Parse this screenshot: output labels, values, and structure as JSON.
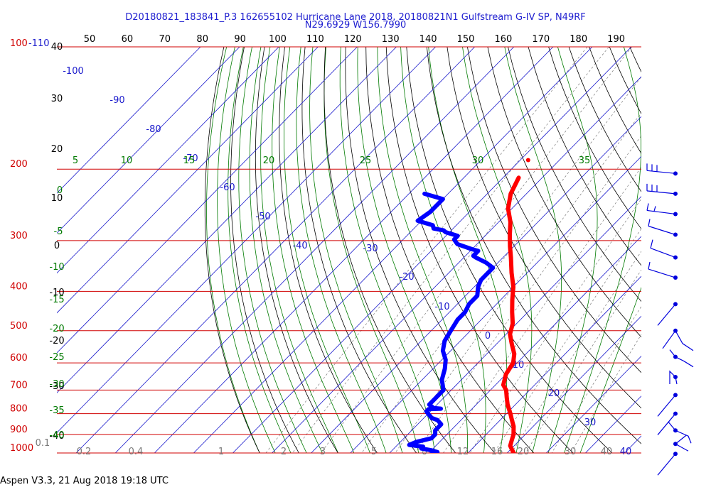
{
  "chart_data": {
    "type": "line",
    "title": "D20180821_183841_P.3 162655102 Hurricane Lane 2018, 20180821N1 Gulfstream G-IV SP, N49RF",
    "subtitle": "N29.6929 W156.7990",
    "footer": "Aspen V3.3, 21 Aug 2018  19:18 UTC",
    "pressure_range": [
      100,
      1000
    ],
    "pressure_corner_label": "100",
    "pressure_ticks": [
      "200",
      "300",
      "400",
      "500",
      "600",
      "700",
      "800",
      "900",
      "1000"
    ],
    "temp_corner_label": "-110",
    "isotherm_ticks": [
      "-100",
      "-90",
      "-80",
      "-70",
      "-60",
      "-50",
      "-40",
      "-30",
      "-20",
      "-10",
      "0",
      "10",
      "20",
      "30",
      "40"
    ],
    "top_axis_ticks": [
      "50",
      "60",
      "70",
      "80",
      "90",
      "100",
      "110",
      "120",
      "130",
      "140",
      "150",
      "160",
      "170",
      "180",
      "190"
    ],
    "left_axis_ticks": [
      "40",
      "30",
      "20",
      "10",
      "0",
      "-10",
      "-20",
      "-30",
      "-40"
    ],
    "mixing_ratio_ticks": [
      "0.1",
      "0.2",
      "0.4",
      "1",
      "2",
      "3",
      "5",
      "8",
      "12",
      "16",
      "20",
      "30",
      "40"
    ],
    "dry_adiabat_ticks": [
      "5",
      "10",
      "15",
      "20",
      "25",
      "30",
      "35"
    ],
    "moist_adiabat_ticks": [
      "0",
      "-5",
      "-10",
      "-15",
      "-20",
      "-25",
      "-30",
      "-35",
      "-40"
    ],
    "series": [
      {
        "role": "temperature",
        "color": "#ff0000",
        "points": [
          [
            210,
            -46
          ],
          [
            230,
            -44
          ],
          [
            250,
            -41
          ],
          [
            270,
            -37
          ],
          [
            290,
            -34
          ],
          [
            310,
            -31
          ],
          [
            330,
            -28
          ],
          [
            360,
            -24
          ],
          [
            390,
            -20
          ],
          [
            420,
            -17
          ],
          [
            450,
            -14
          ],
          [
            480,
            -11
          ],
          [
            510,
            -9
          ],
          [
            540,
            -6
          ],
          [
            570,
            -3
          ],
          [
            600,
            -1
          ],
          [
            640,
            0
          ],
          [
            680,
            2
          ],
          [
            700,
            4
          ],
          [
            730,
            6
          ],
          [
            760,
            8
          ],
          [
            800,
            11
          ],
          [
            830,
            13
          ],
          [
            860,
            15
          ],
          [
            900,
            17
          ],
          [
            930,
            18
          ],
          [
            960,
            19
          ],
          [
            990,
            21
          ],
          [
            1005,
            22
          ]
        ]
      },
      {
        "role": "dewpoint",
        "color": "#0000ff",
        "points": [
          [
            230,
            -66
          ],
          [
            237,
            -60
          ],
          [
            255,
            -60
          ],
          [
            268,
            -61
          ],
          [
            275,
            -56
          ],
          [
            280,
            -55
          ],
          [
            283,
            -52
          ],
          [
            286,
            -51
          ],
          [
            292,
            -47
          ],
          [
            298,
            -47
          ],
          [
            302,
            -46
          ],
          [
            306,
            -45
          ],
          [
            315,
            -40
          ],
          [
            318,
            -38
          ],
          [
            322,
            -38
          ],
          [
            327,
            -38
          ],
          [
            330,
            -37
          ],
          [
            340,
            -33
          ],
          [
            350,
            -30
          ],
          [
            360,
            -30
          ],
          [
            375,
            -30
          ],
          [
            390,
            -29
          ],
          [
            410,
            -27
          ],
          [
            430,
            -27
          ],
          [
            450,
            -26
          ],
          [
            470,
            -26
          ],
          [
            500,
            -25
          ],
          [
            530,
            -24
          ],
          [
            560,
            -22
          ],
          [
            590,
            -19
          ],
          [
            620,
            -17
          ],
          [
            660,
            -15
          ],
          [
            700,
            -12
          ],
          [
            730,
            -12
          ],
          [
            760,
            -12
          ],
          [
            775,
            -10
          ],
          [
            778,
            -8
          ],
          [
            780,
            -11
          ],
          [
            790,
            -11
          ],
          [
            800,
            -10
          ],
          [
            810,
            -9
          ],
          [
            820,
            -8
          ],
          [
            830,
            -6
          ],
          [
            850,
            -4
          ],
          [
            880,
            -4
          ],
          [
            900,
            -3
          ],
          [
            920,
            -3
          ],
          [
            940,
            -6
          ],
          [
            955,
            -7
          ],
          [
            965,
            -3
          ],
          [
            975,
            -3
          ],
          [
            985,
            0
          ],
          [
            995,
            2
          ],
          [
            1003,
            1
          ]
        ]
      },
      {
        "role": "isolated-point",
        "color": "#ff0000",
        "points": [
          [
            190,
            -48
          ]
        ]
      }
    ],
    "wind_barbs": [
      {
        "pressure": 205,
        "style": "EEE"
      },
      {
        "pressure": 230,
        "style": "EEE"
      },
      {
        "pressure": 258,
        "style": "E5"
      },
      {
        "pressure": 290,
        "style": "slash"
      },
      {
        "pressure": 330,
        "style": "L"
      },
      {
        "pressure": 370,
        "style": "slash"
      },
      {
        "pressure": 430,
        "style": "single"
      },
      {
        "pressure": 500,
        "style": "zigzag"
      },
      {
        "pressure": 580,
        "style": "V"
      },
      {
        "pressure": 650,
        "style": "bracket"
      },
      {
        "pressure": 720,
        "style": "single"
      },
      {
        "pressure": 800,
        "style": "single"
      },
      {
        "pressure": 880,
        "style": "hook"
      },
      {
        "pressure": 950,
        "style": "V2"
      },
      {
        "pressure": 1005,
        "style": "single"
      }
    ],
    "colors": {
      "isobar": "#d00000",
      "isotherm": "#1a1acc",
      "dry_adiabat": "#000000",
      "moist_adiabat": "#007a00",
      "mixing_ratio": "#7a7a7a",
      "barb": "#0000dd"
    }
  }
}
